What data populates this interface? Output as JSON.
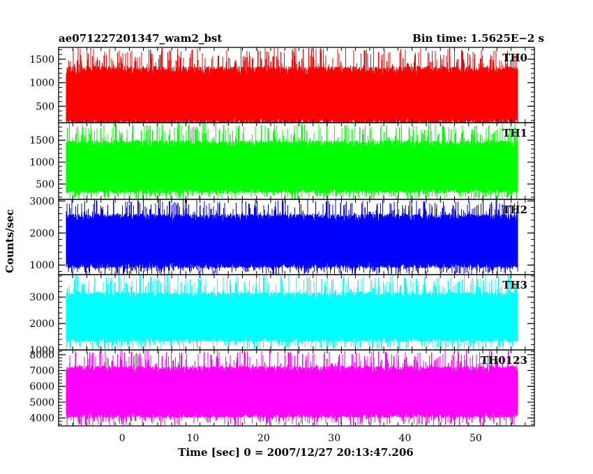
{
  "header": {
    "title": "ae071227201347_wam2_bst",
    "bin_time": "Bin time: 1.5625E−2 s"
  },
  "axes": {
    "xlabel": "Time [sec] 0 = 2007/12/27 20:13:47.206",
    "ylabel": "Counts/sec"
  },
  "chart_data": {
    "type": "line",
    "title": "ae071227201347_wam2_bst",
    "xlabel": "Time [sec] 0 = 2007/12/27 20:13:47.206",
    "ylabel": "Counts/sec",
    "xlim": [
      -9,
      58.3
    ],
    "data_x_range": [
      -8,
      56
    ],
    "bin_time_s": 0.015625,
    "x_ticks": [
      0,
      10,
      20,
      30,
      40,
      50
    ],
    "grid": false,
    "series": [
      {
        "name": "TH0",
        "color": "#ff0000",
        "ylim": [
          150,
          1750
        ],
        "y_ticks": [
          500,
          1000,
          1500
        ],
        "base_min": 130,
        "base_max": 1350,
        "spike_max": 1750,
        "spike_min": 0
      },
      {
        "name": "TH1",
        "color": "#00ff00",
        "ylim": [
          150,
          1900
        ],
        "y_ticks": [
          500,
          1000,
          1500
        ],
        "base_min": 290,
        "base_max": 1500,
        "spike_max": 1900,
        "spike_min": 150
      },
      {
        "name": "TH2",
        "color": "#0000ff",
        "ylim": [
          700,
          3050
        ],
        "y_ticks": [
          1000,
          2000,
          3000
        ],
        "base_min": 900,
        "base_max": 2600,
        "spike_max": 3050,
        "spike_min": 700
      },
      {
        "name": "TH3",
        "color": "#00ffff",
        "ylim": [
          1000,
          3850
        ],
        "y_ticks": [
          1000,
          2000,
          3000
        ],
        "base_min": 1300,
        "base_max": 3200,
        "spike_max": 3850,
        "spike_min": 1000
      },
      {
        "name": "TH0123",
        "color": "#ff00ff",
        "ylim": [
          3500,
          8300
        ],
        "y_ticks": [
          4000,
          5000,
          6000,
          7000,
          8000
        ],
        "base_min": 4000,
        "base_max": 7300,
        "spike_max": 8300,
        "spike_min": 3500
      }
    ]
  }
}
